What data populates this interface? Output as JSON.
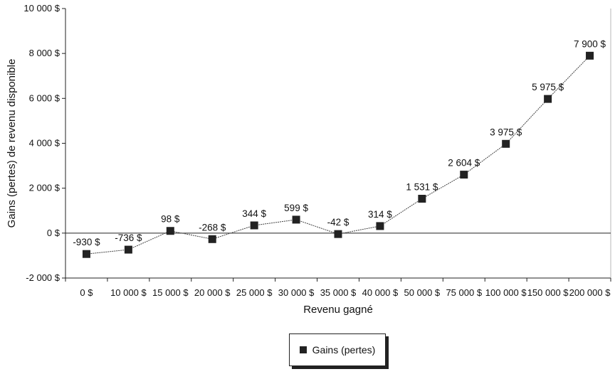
{
  "chart_data": {
    "type": "line",
    "xlabel": "Revenu gagné",
    "ylabel": "Gains (pertes) de revenu disponible",
    "ylim": [
      -2000,
      10000
    ],
    "grid": false,
    "legend_placement": "bottom-center",
    "categories": [
      "0 $",
      "10 000 $",
      "15 000 $",
      "20 000 $",
      "25 000 $",
      "30 000 $",
      "35 000 $",
      "40 000 $",
      "50 000 $",
      "75 000 $",
      "100 000 $",
      "150 000 $",
      "200 000 $"
    ],
    "y_ticks": [
      {
        "value": 10000,
        "label": "10 000 $"
      },
      {
        "value": 8000,
        "label": "8 000 $"
      },
      {
        "value": 6000,
        "label": "6 000 $"
      },
      {
        "value": 4000,
        "label": "4 000 $"
      },
      {
        "value": 2000,
        "label": "2 000 $"
      },
      {
        "value": 0,
        "label": "0 $"
      },
      {
        "value": -2000,
        "label": "-2 000 $"
      }
    ],
    "series": [
      {
        "name": "Gains (pertes)",
        "color": "#222222",
        "values": [
          -930,
          -736,
          98,
          -268,
          344,
          599,
          -42,
          314,
          1531,
          2604,
          3975,
          5975,
          7900
        ],
        "labels": [
          "-930 $",
          "-736 $",
          "98 $",
          "-268 $",
          "344 $",
          "599 $",
          "-42 $",
          "314 $",
          "1 531 $",
          "2 604 $",
          "3 975 $",
          "5 975 $",
          "7 900 $"
        ]
      }
    ]
  },
  "legend": {
    "label": "Gains (pertes)"
  }
}
